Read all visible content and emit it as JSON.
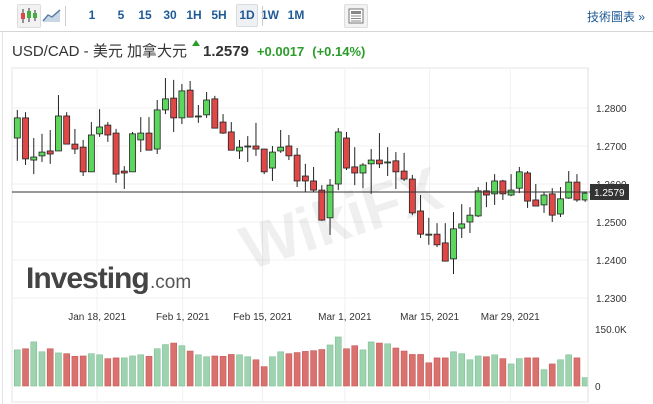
{
  "toolbar": {
    "intervals": [
      "1",
      "5",
      "15",
      "30",
      "1H",
      "5H",
      "1D",
      "1W",
      "1M"
    ],
    "active_interval": "1D",
    "candlestick_icon": "candlestick-chart-icon",
    "area_icon": "area-chart-icon",
    "news_icon": "news-panel-icon",
    "technical_chart_link": "技術圖表 »"
  },
  "header": {
    "instrument": "USD/CAD - 美元 加拿大元",
    "last_price": "1.2579",
    "change": "+0.0017",
    "change_pct": "(+0.14%)",
    "direction_icon": "up-arrow-icon"
  },
  "colors": {
    "up": "#5cd65c",
    "down": "#e04848",
    "vol_up": "#9ed3b0",
    "vol_down": "#d9716f",
    "accent": "#1f5a96",
    "positive": "#2a9d2a"
  },
  "logo": {
    "text_main": "Investing",
    "text_suffix": ".com"
  },
  "watermark": "WikiFX",
  "chart_data": {
    "type": "candlestick",
    "symbol": "USD/CAD",
    "current_price_label": "1.2579",
    "current_price": 1.2579,
    "price_axis": {
      "ticks": [
        "1.2800",
        "1.2700",
        "1.2600",
        "1.2500",
        "1.2400",
        "1.2300"
      ],
      "tick_values": [
        1.28,
        1.27,
        1.26,
        1.25,
        1.24,
        1.23
      ],
      "range": [
        1.2285,
        1.2905
      ]
    },
    "date_ticks": [
      {
        "label": "Jan 18, 2021",
        "index": 9.7
      },
      {
        "label": "Feb 1, 2021",
        "index": 20.1
      },
      {
        "label": "Feb 15, 2021",
        "index": 29.8
      },
      {
        "label": "Mar 1, 2021",
        "index": 39.8
      },
      {
        "label": "Mar 15, 2021",
        "index": 50.1
      },
      {
        "label": "Mar 29, 2021",
        "index": 59.9
      }
    ],
    "ohlc": [
      [
        1.2721,
        1.2795,
        1.2661,
        1.2774
      ],
      [
        1.2774,
        1.2789,
        1.265,
        1.2666
      ],
      [
        1.2663,
        1.2721,
        1.2626,
        1.2671
      ],
      [
        1.2674,
        1.2732,
        1.2658,
        1.2684
      ],
      [
        1.2687,
        1.2742,
        1.2653,
        1.2679
      ],
      [
        1.2687,
        1.2834,
        1.2687,
        1.2779
      ],
      [
        1.2779,
        1.2789,
        1.2705,
        1.2705
      ],
      [
        1.2705,
        1.2745,
        1.2679,
        1.2692
      ],
      [
        1.2697,
        1.2716,
        1.2621,
        1.2632
      ],
      [
        1.2632,
        1.2763,
        1.2632,
        1.2729
      ],
      [
        1.2732,
        1.2797,
        1.2724,
        1.275
      ],
      [
        1.2755,
        1.2763,
        1.2711,
        1.2729
      ],
      [
        1.2734,
        1.2745,
        1.2603,
        1.2626
      ],
      [
        1.2634,
        1.2647,
        1.2587,
        1.2629
      ],
      [
        1.2632,
        1.2737,
        1.2632,
        1.2732
      ],
      [
        1.2716,
        1.2776,
        1.2684,
        1.2734
      ],
      [
        1.2734,
        1.2776,
        1.2689,
        1.2689
      ],
      [
        1.2692,
        1.2821,
        1.2679,
        1.2795
      ],
      [
        1.2795,
        1.2879,
        1.2784,
        1.2824
      ],
      [
        1.2826,
        1.2874,
        1.2737,
        1.2774
      ],
      [
        1.2774,
        1.2863,
        1.2758,
        1.2845
      ],
      [
        1.2847,
        1.2871,
        1.2776,
        1.2776
      ],
      [
        1.2779,
        1.2808,
        1.2761,
        1.2779
      ],
      [
        1.2782,
        1.2842,
        1.2774,
        1.2821
      ],
      [
        1.2824,
        1.2832,
        1.2747,
        1.2747
      ],
      [
        1.2763,
        1.2784,
        1.2732,
        1.2734
      ],
      [
        1.2737,
        1.2763,
        1.2689,
        1.2689
      ],
      [
        1.2687,
        1.2716,
        1.2666,
        1.2697
      ],
      [
        1.27,
        1.2726,
        1.2658,
        1.27
      ],
      [
        1.27,
        1.2761,
        1.2674,
        1.2692
      ],
      [
        1.2692,
        1.2692,
        1.2626,
        1.2632
      ],
      [
        1.2642,
        1.27,
        1.2608,
        1.2684
      ],
      [
        1.2687,
        1.2742,
        1.2682,
        1.2697
      ],
      [
        1.27,
        1.2729,
        1.2663,
        1.2674
      ],
      [
        1.2676,
        1.2695,
        1.2592,
        1.2608
      ],
      [
        1.2621,
        1.2653,
        1.2579,
        1.2608
      ],
      [
        1.2608,
        1.2645,
        1.2579,
        1.2584
      ],
      [
        1.2584,
        1.2597,
        1.2503,
        1.2505
      ],
      [
        1.2511,
        1.2613,
        1.2466,
        1.2597
      ],
      [
        1.26,
        1.2747,
        1.2584,
        1.2737
      ],
      [
        1.2721,
        1.2737,
        1.2637,
        1.2642
      ],
      [
        1.2645,
        1.2697,
        1.2597,
        1.2629
      ],
      [
        1.2629,
        1.2655,
        1.2589,
        1.265
      ],
      [
        1.2653,
        1.2692,
        1.2574,
        1.2663
      ],
      [
        1.2663,
        1.2734,
        1.2642,
        1.2653
      ],
      [
        1.2658,
        1.2697,
        1.2621,
        1.2658
      ],
      [
        1.2661,
        1.2684,
        1.2587,
        1.2632
      ],
      [
        1.2634,
        1.2682,
        1.2608,
        1.2613
      ],
      [
        1.2613,
        1.2624,
        1.2518,
        1.2524
      ],
      [
        1.2529,
        1.2571,
        1.2458,
        1.2468
      ],
      [
        1.2468,
        1.2511,
        1.244,
        1.2468
      ],
      [
        1.2468,
        1.2497,
        1.2434,
        1.244
      ],
      [
        1.2445,
        1.2497,
        1.2397,
        1.2397
      ],
      [
        1.2403,
        1.2526,
        1.2363,
        1.2482
      ],
      [
        1.2484,
        1.2547,
        1.2458,
        1.2495
      ],
      [
        1.25,
        1.2539,
        1.2471,
        1.2518
      ],
      [
        1.2516,
        1.2592,
        1.2513,
        1.2582
      ],
      [
        1.2582,
        1.2605,
        1.2539,
        1.2571
      ],
      [
        1.2574,
        1.2626,
        1.2545,
        1.2608
      ],
      [
        1.2608,
        1.2611,
        1.2558,
        1.2574
      ],
      [
        1.2571,
        1.2626,
        1.2568,
        1.2584
      ],
      [
        1.2589,
        1.2645,
        1.2576,
        1.2632
      ],
      [
        1.2629,
        1.2634,
        1.2537,
        1.2555
      ],
      [
        1.2558,
        1.26,
        1.2542,
        1.2542
      ],
      [
        1.2545,
        1.2579,
        1.2524,
        1.2571
      ],
      [
        1.2574,
        1.2589,
        1.25,
        1.2518
      ],
      [
        1.2521,
        1.2592,
        1.2513,
        1.2561
      ],
      [
        1.2563,
        1.2634,
        1.2561,
        1.2605
      ],
      [
        1.2605,
        1.2626,
        1.2553,
        1.2558
      ],
      [
        1.2558,
        1.2579,
        1.2553,
        1.2576
      ]
    ],
    "volume_axis": {
      "ticks": [
        "150.0K",
        "0"
      ],
      "tick_values": [
        150,
        0
      ],
      "unit": "K"
    },
    "volume_k": [
      95,
      98,
      116,
      90,
      98,
      87,
      85,
      78,
      79,
      85,
      82,
      72,
      74,
      74,
      79,
      82,
      78,
      98,
      109,
      113,
      106,
      92,
      82,
      77,
      79,
      78,
      83,
      82,
      77,
      69,
      51,
      77,
      90,
      85,
      88,
      91,
      93,
      96,
      108,
      129,
      98,
      106,
      95,
      116,
      113,
      111,
      100,
      92,
      83,
      83,
      61,
      74,
      74,
      90,
      85,
      69,
      79,
      77,
      82,
      72,
      58,
      72,
      74,
      74,
      43,
      58,
      69,
      82,
      74,
      22
    ],
    "volume_dir": "GRGGRGRRRGGRRGGGRGGRGRGGRRRGGRRGGRRRRRGGRRGGRGRRRRRRRGGGGRGRGGRRGRGGRG"
  }
}
